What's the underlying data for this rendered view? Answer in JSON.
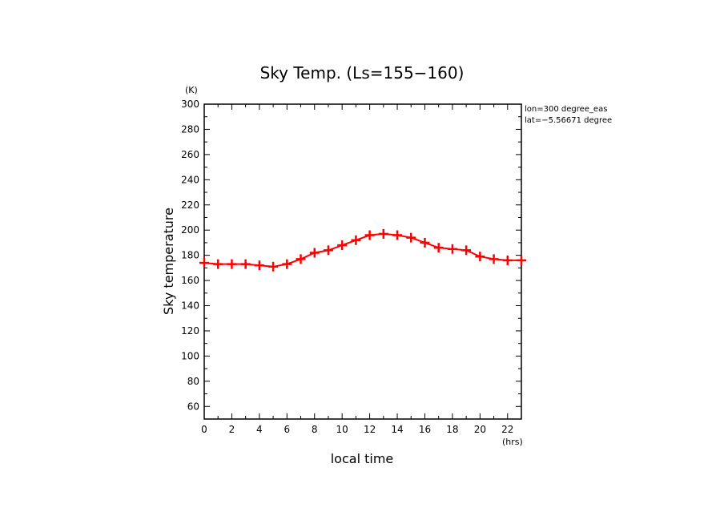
{
  "chart_data": {
    "type": "line",
    "title": "Sky Temp. (Ls=155−160)",
    "xlabel": "local time",
    "ylabel": "Sky temperature",
    "x_unit": "(hrs)",
    "y_unit": "(K)",
    "xlim": [
      0,
      23
    ],
    "ylim": [
      50,
      300
    ],
    "x_ticks": [
      0,
      2,
      4,
      6,
      8,
      10,
      12,
      14,
      16,
      18,
      20,
      22
    ],
    "y_ticks": [
      60,
      80,
      100,
      120,
      140,
      160,
      180,
      200,
      220,
      240,
      260,
      280,
      300
    ],
    "annotations": [
      "lon=300 degree_eas",
      "lat=−5.56671 degree"
    ],
    "grid": false,
    "series": [
      {
        "color": "#ff0000",
        "marker": "plus",
        "x": [
          0,
          1,
          2,
          3,
          4,
          5,
          6,
          7,
          8,
          9,
          10,
          11,
          12,
          13,
          14,
          15,
          16,
          17,
          18,
          19,
          20,
          21,
          22,
          23
        ],
        "y": [
          174,
          173,
          173,
          173,
          172,
          171,
          173,
          177,
          182,
          184,
          188,
          192,
          196,
          197,
          196,
          194,
          190,
          186,
          185,
          184,
          179,
          177,
          176,
          176
        ]
      }
    ]
  }
}
